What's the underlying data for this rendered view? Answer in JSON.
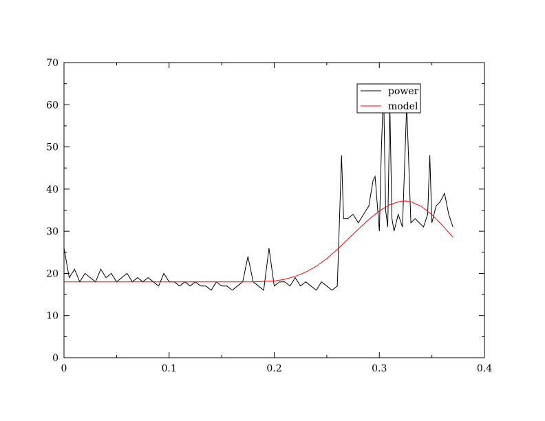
{
  "chart_data": {
    "type": "line",
    "title": "",
    "xlabel": "",
    "ylabel": "",
    "xlim": [
      0,
      0.4
    ],
    "ylim": [
      0,
      70
    ],
    "x_ticks": [
      0,
      0.1,
      0.2,
      0.3,
      0.4
    ],
    "x_tick_labels": [
      "0",
      "0.1",
      "0.2",
      "0.3",
      "0.4"
    ],
    "y_ticks": [
      0,
      10,
      20,
      30,
      40,
      50,
      60,
      70
    ],
    "y_tick_labels": [
      "0",
      "10",
      "20",
      "30",
      "40",
      "50",
      "60",
      "70"
    ],
    "grid": false,
    "legend_position": "top-right",
    "series": [
      {
        "name": "power",
        "color": "#000000",
        "x": [
          0.0,
          0.005,
          0.01,
          0.015,
          0.02,
          0.025,
          0.03,
          0.035,
          0.04,
          0.045,
          0.05,
          0.055,
          0.06,
          0.065,
          0.07,
          0.075,
          0.08,
          0.085,
          0.09,
          0.095,
          0.1,
          0.105,
          0.11,
          0.115,
          0.12,
          0.125,
          0.13,
          0.135,
          0.14,
          0.145,
          0.15,
          0.155,
          0.16,
          0.165,
          0.17,
          0.175,
          0.18,
          0.185,
          0.19,
          0.195,
          0.2,
          0.205,
          0.21,
          0.215,
          0.22,
          0.225,
          0.23,
          0.235,
          0.24,
          0.245,
          0.25,
          0.255,
          0.26,
          0.262,
          0.264,
          0.266,
          0.27,
          0.275,
          0.28,
          0.285,
          0.29,
          0.294,
          0.296,
          0.3,
          0.302,
          0.304,
          0.306,
          0.308,
          0.31,
          0.312,
          0.314,
          0.318,
          0.322,
          0.326,
          0.33,
          0.334,
          0.338,
          0.342,
          0.346,
          0.348,
          0.35,
          0.354,
          0.358,
          0.362,
          0.366,
          0.37
        ],
        "y": [
          26,
          19,
          21,
          18,
          20,
          19,
          18,
          21,
          19,
          20,
          18,
          19,
          20,
          18,
          19,
          18,
          19,
          18,
          17,
          20,
          18,
          18,
          17,
          18,
          17,
          18,
          17,
          17,
          16,
          18,
          17,
          17,
          16,
          17,
          18,
          24,
          18,
          17,
          16,
          26,
          17,
          18,
          18,
          17,
          19,
          17,
          18,
          17,
          16,
          18,
          17,
          16,
          17,
          32,
          48,
          33,
          33,
          34,
          32,
          34,
          36,
          42,
          43,
          30,
          50,
          64,
          35,
          31,
          60,
          33,
          30,
          34,
          31,
          60,
          32,
          33,
          32,
          31,
          34,
          48,
          32,
          36,
          37,
          39,
          34,
          31
        ]
      },
      {
        "name": "model",
        "color": "#ff0000",
        "x": [
          0.0,
          0.05,
          0.1,
          0.15,
          0.18,
          0.2,
          0.21,
          0.22,
          0.23,
          0.24,
          0.25,
          0.26,
          0.27,
          0.28,
          0.29,
          0.3,
          0.31,
          0.32,
          0.325,
          0.33,
          0.34,
          0.35,
          0.36,
          0.37
        ],
        "y": [
          18,
          18,
          18,
          18,
          18,
          18.2,
          18.6,
          19.3,
          20.3,
          21.7,
          23.5,
          25.7,
          28.1,
          30.5,
          32.8,
          34.8,
          36.3,
          37.1,
          37.2,
          37.0,
          35.9,
          33.9,
          31.4,
          28.6
        ]
      }
    ]
  }
}
